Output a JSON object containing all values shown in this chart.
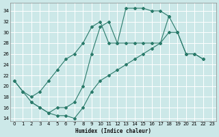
{
  "xlabel": "Humidex (Indice chaleur)",
  "bg_color": "#cce8e8",
  "grid_color": "#ffffff",
  "line_color": "#2a7a6a",
  "xlim": [
    -0.5,
    23.5
  ],
  "ylim": [
    13.5,
    35.5
  ],
  "xticks": [
    0,
    1,
    2,
    3,
    4,
    5,
    6,
    7,
    8,
    9,
    10,
    11,
    12,
    13,
    14,
    15,
    16,
    17,
    18,
    19,
    20,
    21,
    22,
    23
  ],
  "yticks": [
    14,
    16,
    18,
    20,
    22,
    24,
    26,
    28,
    30,
    32,
    34
  ],
  "line1_x": [
    0,
    1,
    2,
    3,
    4,
    5,
    6,
    7,
    8,
    9,
    10,
    11,
    12,
    13,
    14,
    15,
    16,
    17,
    18
  ],
  "line1_y": [
    21,
    19,
    18,
    19,
    21,
    23,
    25,
    26,
    28,
    31,
    32,
    28,
    28,
    28,
    28,
    28,
    28,
    28,
    33
  ],
  "line2_x": [
    0,
    1,
    2,
    3,
    4,
    5,
    6,
    7,
    8,
    9,
    10,
    11,
    12,
    13,
    14,
    15,
    16,
    17,
    18,
    19,
    20,
    21,
    22
  ],
  "line2_y": [
    21,
    19,
    17,
    16,
    15,
    16,
    16,
    17,
    20,
    26,
    31,
    32,
    28,
    34.5,
    34.5,
    34.5,
    34,
    34,
    33,
    30,
    26,
    26,
    25
  ],
  "line3_x": [
    2,
    3,
    4,
    5,
    6,
    7,
    8,
    9,
    10,
    11,
    12,
    13,
    14,
    15,
    16,
    17,
    18,
    19,
    20,
    21,
    22
  ],
  "line3_y": [
    17,
    16,
    15,
    14.5,
    14.5,
    14,
    16,
    19,
    21,
    22,
    23,
    24,
    25,
    26,
    27,
    28,
    30,
    30,
    26,
    26,
    25
  ]
}
